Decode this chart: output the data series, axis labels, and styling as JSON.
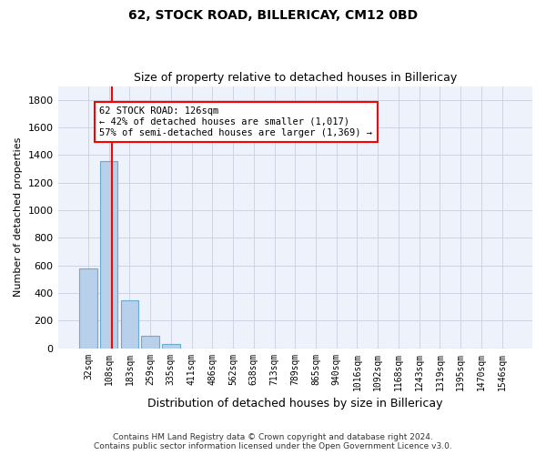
{
  "title": "62, STOCK ROAD, BILLERICAY, CM12 0BD",
  "subtitle": "Size of property relative to detached houses in Billericay",
  "xlabel": "Distribution of detached houses by size in Billericay",
  "ylabel": "Number of detached properties",
  "bar_color": "#b8d0ea",
  "bar_edge_color": "#6aaad4",
  "categories": [
    "32sqm",
    "108sqm",
    "183sqm",
    "259sqm",
    "335sqm",
    "411sqm",
    "486sqm",
    "562sqm",
    "638sqm",
    "713sqm",
    "789sqm",
    "865sqm",
    "940sqm",
    "1016sqm",
    "1092sqm",
    "1168sqm",
    "1243sqm",
    "1319sqm",
    "1395sqm",
    "1470sqm",
    "1546sqm"
  ],
  "values": [
    580,
    1355,
    350,
    90,
    30,
    0,
    0,
    0,
    0,
    0,
    0,
    0,
    0,
    0,
    0,
    0,
    0,
    0,
    0,
    0,
    0
  ],
  "ylim": [
    0,
    1900
  ],
  "yticks": [
    0,
    200,
    400,
    600,
    800,
    1000,
    1200,
    1400,
    1600,
    1800
  ],
  "annotation_text": "62 STOCK ROAD: 126sqm\n← 42% of detached houses are smaller (1,017)\n57% of semi-detached houses are larger (1,369) →",
  "annotation_box_color": "white",
  "annotation_box_edge_color": "red",
  "red_line_x": 1.15,
  "footer_line1": "Contains HM Land Registry data © Crown copyright and database right 2024.",
  "footer_line2": "Contains public sector information licensed under the Open Government Licence v3.0.",
  "background_color": "#eef2fb",
  "grid_color": "#c8cfe0"
}
